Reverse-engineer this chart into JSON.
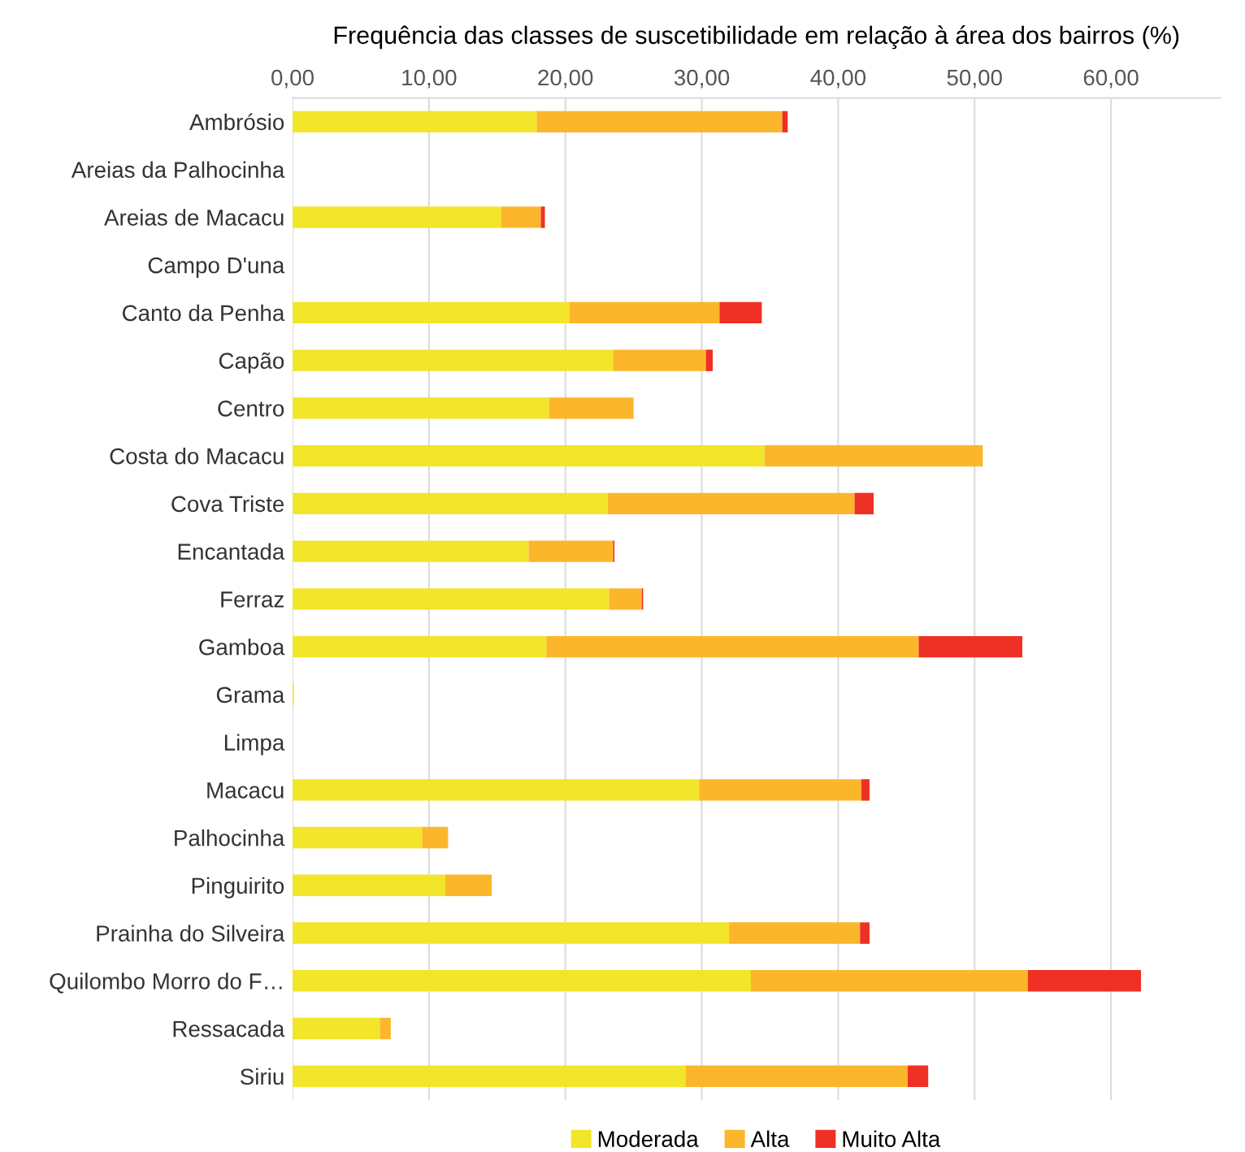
{
  "chart_data": {
    "type": "bar",
    "orientation": "horizontal",
    "stacked": true,
    "title": "Frequência das classes de suscetibilidade em relação à área dos bairros (%)",
    "categories": [
      "Ambrósio",
      "Areias da Palhocinha",
      "Areias de Macacu",
      "Campo D'una",
      "Canto da Penha",
      "Capão",
      "Centro",
      "Costa do Macacu",
      "Cova Triste",
      "Encantada",
      "Ferraz",
      "Gamboa",
      "Grama",
      "Limpa",
      "Macacu",
      "Palhocinha",
      "Pinguirito",
      "Prainha do Silveira",
      "Quilombo Morro do F…",
      "Ressacada",
      "Siriu"
    ],
    "series": [
      {
        "name": "Moderada",
        "color": "#f2e52a",
        "values": [
          17.9,
          0,
          15.3,
          0,
          20.3,
          23.5,
          18.8,
          34.6,
          23.1,
          17.3,
          23.2,
          18.6,
          0.1,
          0,
          29.8,
          9.5,
          11.2,
          32.0,
          33.6,
          6.4,
          28.8
        ]
      },
      {
        "name": "Alta",
        "color": "#fbb62b",
        "values": [
          18.0,
          0,
          2.9,
          0,
          11.0,
          6.8,
          6.2,
          16.0,
          18.1,
          6.2,
          2.4,
          27.3,
          0,
          0,
          11.9,
          1.9,
          3.4,
          9.6,
          20.3,
          0.8,
          16.3
        ]
      },
      {
        "name": "Muito Alta",
        "color": "#ee3124",
        "values": [
          0.4,
          0,
          0.3,
          0,
          3.1,
          0.5,
          0,
          0,
          1.4,
          0.1,
          0.1,
          7.6,
          0,
          0,
          0.6,
          0,
          0,
          0.7,
          8.3,
          0,
          1.5
        ]
      }
    ],
    "xlim": [
      0,
      68
    ],
    "xticks": [
      {
        "value": 0,
        "label": "0,00"
      },
      {
        "value": 10,
        "label": "10,00"
      },
      {
        "value": 20,
        "label": "20,00"
      },
      {
        "value": 30,
        "label": "30,00"
      },
      {
        "value": 40,
        "label": "40,00"
      },
      {
        "value": 50,
        "label": "50,00"
      },
      {
        "value": 60,
        "label": "60,00"
      }
    ],
    "grid": "x",
    "legend": "bottom"
  }
}
